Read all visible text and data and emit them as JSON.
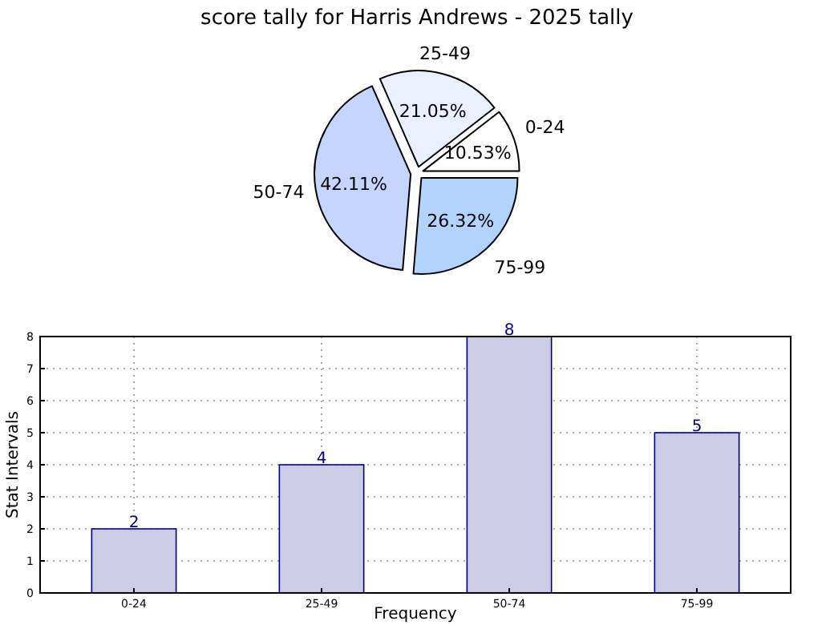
{
  "chart_data": [
    {
      "type": "pie",
      "title": "score tally for Harris Andrews - 2025 tally",
      "categories": [
        "0-24",
        "25-49",
        "50-74",
        "75-99"
      ],
      "values": [
        10.53,
        21.05,
        42.11,
        26.32
      ],
      "value_labels": [
        "10.53%",
        "21.05%",
        "42.11%",
        "26.32%"
      ],
      "colors": [
        "#ffffff",
        "#eaf0ff",
        "#c5d5ff",
        "#b3d3ff"
      ]
    },
    {
      "type": "bar",
      "categories": [
        "0-24",
        "25-49",
        "50-74",
        "75-99"
      ],
      "values": [
        2,
        4,
        8,
        5
      ],
      "color": "#ccccE6",
      "xlabel": "Frequency",
      "ylabel": "Stat Intervals",
      "ylim": [
        0,
        8
      ],
      "yticks": [
        0,
        1,
        2,
        3,
        4,
        5,
        6,
        7,
        8
      ],
      "grid": true,
      "data_labels": true
    }
  ]
}
